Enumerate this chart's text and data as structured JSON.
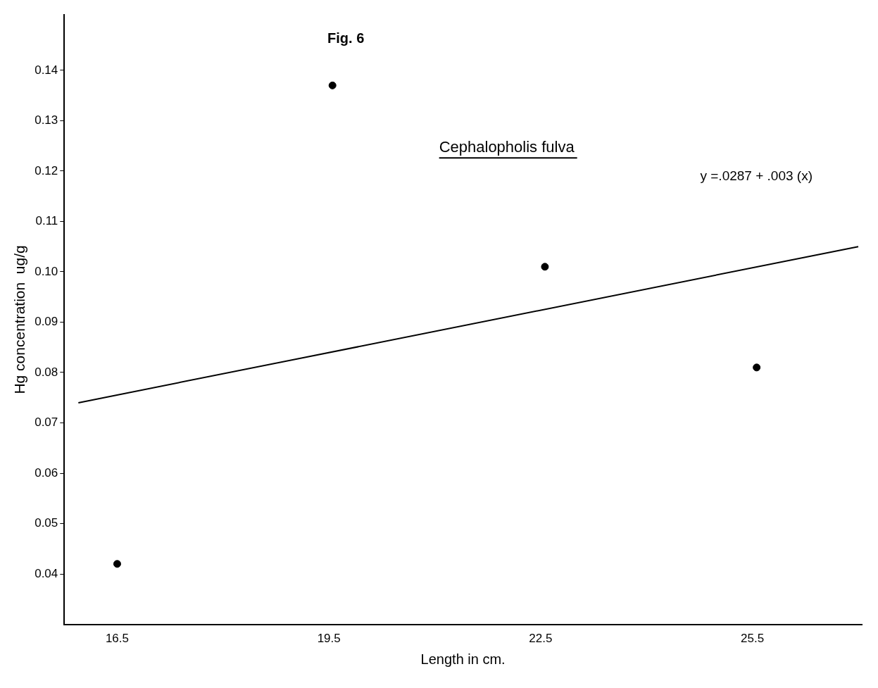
{
  "chart_data": {
    "type": "scatter",
    "title": "Fig. 6",
    "xlabel": "Length in cm.",
    "ylabel": "Hg concentration  ug/g",
    "annotations": [
      "Cephalopholis fulva",
      "y =.0287 + .003 (x)"
    ],
    "series": [
      {
        "color": "#000000",
        "x": [
          16.5,
          19.55,
          22.56,
          25.56
        ],
        "values": [
          0.042,
          0.137,
          0.101,
          0.081
        ]
      },
      {
        "type": "line",
        "marker": "none",
        "color": "#000000",
        "x": [
          15.95,
          27.0
        ],
        "values": [
          0.074,
          0.105
        ]
      }
    ],
    "xlim": [
      15.75,
      27.05
    ],
    "xticks": [
      16.5,
      19.5,
      22.5,
      25.5
    ],
    "ylim": [
      0.03,
      0.151
    ],
    "yticks": [
      0.04,
      0.05,
      0.06,
      0.07,
      0.08,
      0.09,
      {
        "value": 0.1,
        "label": "0.10"
      },
      0.11,
      0.12,
      0.13,
      0.14
    ],
    "grid": false,
    "legend": false,
    "marker": "circle",
    "line_style": "solid"
  }
}
